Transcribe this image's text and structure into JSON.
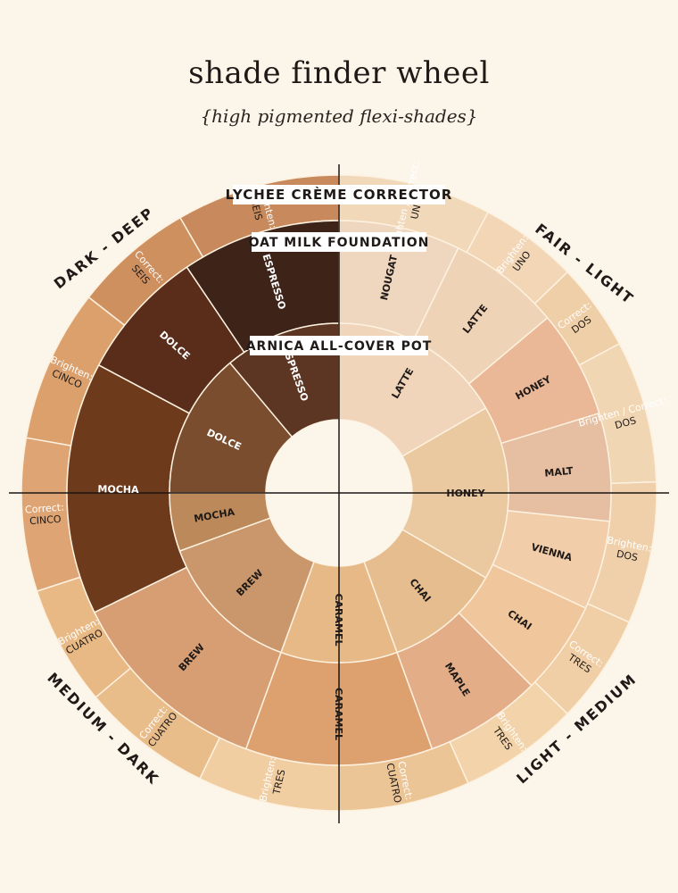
{
  "header": {
    "title": "shade finder wheel",
    "subtitle": "{high pigmented flexi-shades}"
  },
  "ring_titles": {
    "outer": "LYCHEE CRÈME CORRECTOR",
    "middle": "OAT MILK FOUNDATION",
    "inner": "ARNICA ALL-COVER POT"
  },
  "quadrants": [
    {
      "key": "fair-light",
      "label": "FAIR - LIGHT"
    },
    {
      "key": "light-medium",
      "label": "LIGHT - MEDIUM"
    },
    {
      "key": "medium-dark",
      "label": "MEDIUM - DARK"
    },
    {
      "key": "dark-deep",
      "label": "DARK - DEEP"
    }
  ],
  "corrector_segments": [
    {
      "line1": "Brighten / Correct:",
      "line2": "UNO",
      "color": "#f0d8b8"
    },
    {
      "line1": "Brighten:",
      "line2": "UNO",
      "color": "#f2d6b6"
    },
    {
      "line1": "Correct:",
      "line2": "DOS",
      "color": "#efcfa8"
    },
    {
      "line1": "Brighten / Correct:",
      "line2": "DOS",
      "color": "#f1d6b4"
    },
    {
      "line1": "Brighten:",
      "line2": "DOS",
      "color": "#f0d0aa"
    },
    {
      "line1": "Correct:",
      "line2": "TRES",
      "color": "#f0cfa6"
    },
    {
      "line1": "Brighten:",
      "line2": "TRES",
      "color": "#f3d3aa"
    },
    {
      "line1": "Correct:",
      "line2": "CUATRO",
      "color": "#ecc596"
    },
    {
      "line1": "Brighten:",
      "line2": "TRES",
      "color": "#f1cda2"
    },
    {
      "line1": "Correct:",
      "line2": "CUATRO",
      "color": "#e9bd8a"
    },
    {
      "line1": "Brighten:",
      "line2": "CUATRO",
      "color": "#e8b985"
    },
    {
      "line1": "Correct:",
      "line2": "CINCO",
      "color": "#dea473"
    },
    {
      "line1": "Brighten:",
      "line2": "CINCO",
      "color": "#dca06c"
    },
    {
      "line1": "Correct:",
      "line2": "SEIS",
      "color": "#cf9060"
    },
    {
      "line1": "Brighten:",
      "line2": "SEIS",
      "color": "#c88a5c"
    }
  ],
  "foundation_segments": [
    {
      "name": "NOUGAT",
      "color": "#efd6bf"
    },
    {
      "name": "LATTE",
      "color": "#efd3b6"
    },
    {
      "name": "HONEY",
      "color": "#eab897"
    },
    {
      "name": "MALT",
      "color": "#e6bfa2"
    },
    {
      "name": "VIENNA",
      "color": "#f1cda9"
    },
    {
      "name": "CHAI",
      "color": "#f0c69c"
    },
    {
      "name": "MAPLE",
      "color": "#e3ad88"
    },
    {
      "name": "CARAMEL",
      "color": "#dda06f"
    },
    {
      "name": "BREW",
      "color": "#d79e74"
    },
    {
      "name": "MOCHA",
      "color": "#6e3a1c"
    },
    {
      "name": "DOLCE",
      "color": "#5a2d1b"
    },
    {
      "name": "ESPRESSO",
      "color": "#3e2318"
    }
  ],
  "pot_segments": [
    {
      "name": "LATTE",
      "color": "#f0d5bb"
    },
    {
      "name": "HONEY",
      "color": "#eac9a0"
    },
    {
      "name": "CHAI",
      "color": "#e5bd8f"
    },
    {
      "name": "CARAMEL",
      "color": "#e7b987"
    },
    {
      "name": "BREW",
      "color": "#c9976b"
    },
    {
      "name": "MOCHA",
      "color": "#bc8a5a"
    },
    {
      "name": "DOLCE",
      "color": "#7a4d2e"
    },
    {
      "name": "ESPRESSO",
      "color": "#5c3623"
    }
  ],
  "colors": {
    "background": "#fcf5ea",
    "center": "#fcf5ea",
    "text_dark": "#1f1a17",
    "divider": "#fdf1e0"
  }
}
